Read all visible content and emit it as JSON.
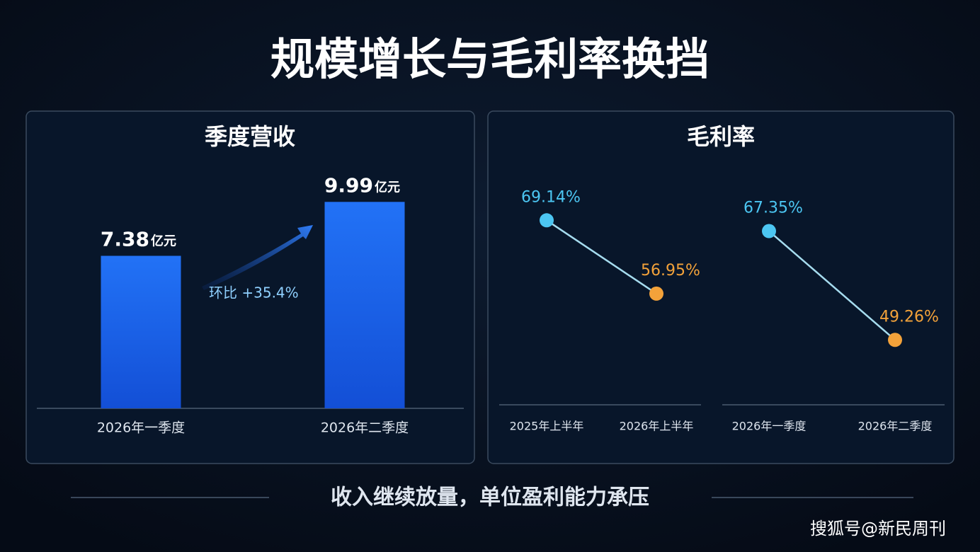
{
  "title": "规模增长与毛利率换挡",
  "footer": "收入继续放量，单位盈利能力承压",
  "watermark": "搜狐号@新民周刊",
  "chart_data": [
    {
      "type": "bar",
      "title": "季度营收",
      "categories": [
        "2026年一季度",
        "2026年二季度"
      ],
      "values": [
        7.38,
        9.99
      ],
      "unit": "亿元",
      "color": "#1a63ee",
      "annotation": "环比 +35.4%"
    },
    {
      "type": "line",
      "title": "毛利率",
      "categories": [
        "2025年上半年",
        "2026年上半年"
      ],
      "values": [
        69.14,
        56.95
      ],
      "value_labels": [
        "69.14%",
        "56.95%"
      ],
      "point_colors": [
        "#4cc6f2",
        "#f3a23a"
      ],
      "color": "#a6dcef"
    },
    {
      "type": "line",
      "categories": [
        "2026年一季度",
        "2026年二季度"
      ],
      "values": [
        67.35,
        49.26
      ],
      "value_labels": [
        "67.35%",
        "49.26%"
      ],
      "point_colors": [
        "#4cc6f2",
        "#f3a23a"
      ],
      "color": "#a6dcef"
    }
  ]
}
